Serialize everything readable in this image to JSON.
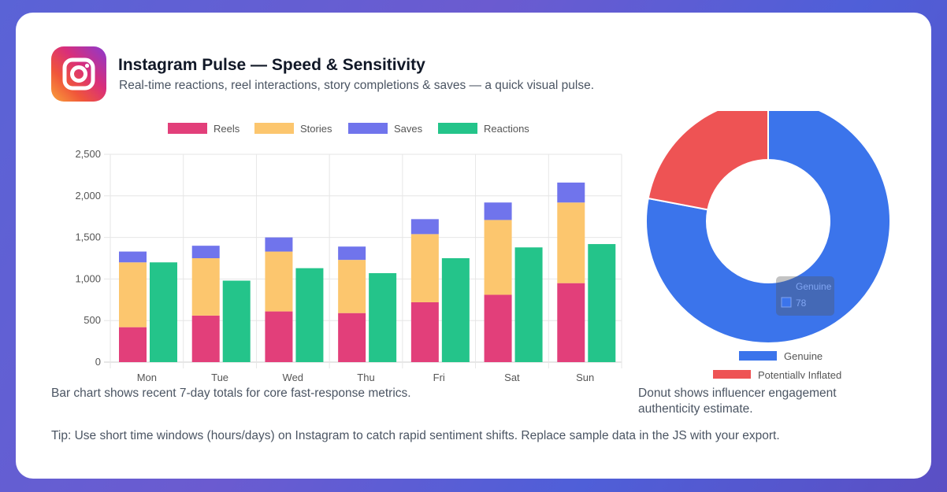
{
  "header": {
    "title": "Instagram Pulse — Speed & Sensitivity",
    "subtitle": "Real-time reactions, reel interactions, story completions & saves — a quick visual pulse."
  },
  "captions": {
    "bar": "Bar chart shows recent 7-day totals for core fast-response metrics.",
    "donut": "Donut shows influencer engagement authenticity estimate.",
    "tip": "Tip: Use short time windows (hours/days) on Instagram to catch rapid sentiment shifts. Replace sample data in the JS with your export."
  },
  "chart_data": [
    {
      "type": "bar",
      "stacked_group": [
        "Reels",
        "Stories",
        "Saves"
      ],
      "categories": [
        "Mon",
        "Tue",
        "Wed",
        "Thu",
        "Fri",
        "Sat",
        "Sun"
      ],
      "series": [
        {
          "name": "Reels",
          "color": "#e23f7a",
          "values": [
            420,
            560,
            610,
            590,
            720,
            810,
            950
          ]
        },
        {
          "name": "Stories",
          "color": "#fcc66e",
          "values": [
            780,
            690,
            720,
            640,
            820,
            900,
            970
          ]
        },
        {
          "name": "Saves",
          "color": "#7074ec",
          "values": [
            130,
            150,
            170,
            160,
            180,
            210,
            240
          ]
        },
        {
          "name": "Reactions",
          "color": "#24c48a",
          "values": [
            1200,
            980,
            1130,
            1070,
            1250,
            1380,
            1420
          ]
        }
      ],
      "yticks": [
        "0",
        "500",
        "1,000",
        "1,500",
        "2,000",
        "2,500"
      ],
      "ylim": [
        0,
        2500
      ],
      "legend": "top"
    },
    {
      "type": "pie",
      "donut": true,
      "labels": [
        "Genuine",
        "Potentially Inflated"
      ],
      "values": [
        78,
        22
      ],
      "colors": [
        "#3b74eb",
        "#ee5354"
      ],
      "tooltip": {
        "label": "Genuine",
        "value": "78"
      },
      "legend": "bottom"
    }
  ]
}
